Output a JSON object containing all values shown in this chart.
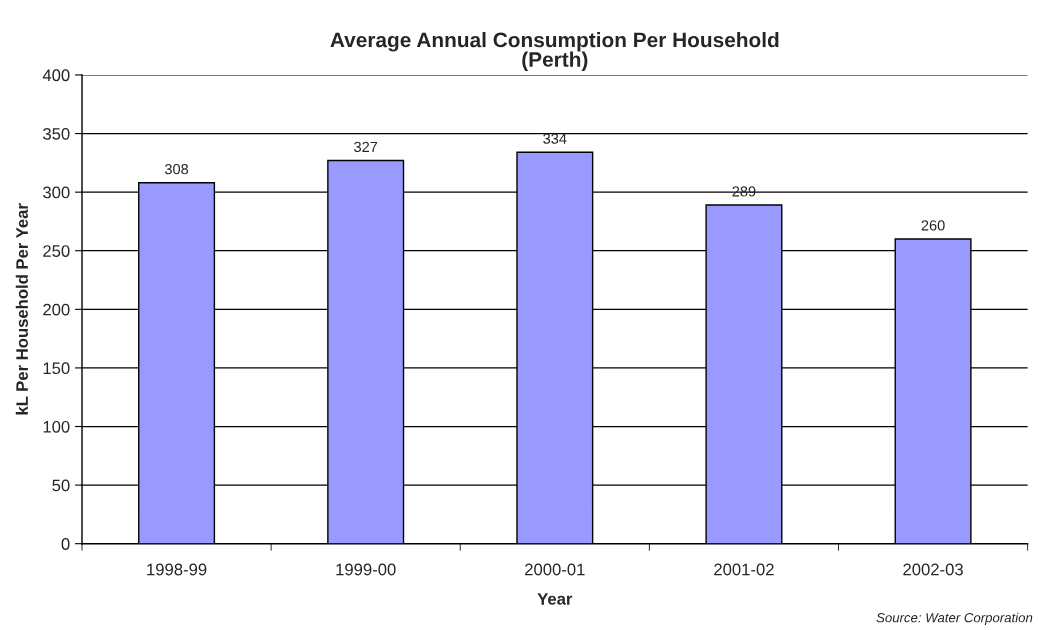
{
  "chart_data": {
    "type": "bar",
    "title": "Average Annual Consumption Per Household\n(Perth)",
    "xlabel": "Year",
    "ylabel": "kL Per Household Per Year",
    "categories": [
      "1998-99",
      "1999-00",
      "2000-01",
      "2001-02",
      "2002-03"
    ],
    "values": [
      308,
      327,
      334,
      289,
      260
    ],
    "color": "#9999ff",
    "ylim": [
      0,
      400
    ],
    "yticks": [
      0,
      50,
      100,
      150,
      200,
      250,
      300,
      350,
      400
    ],
    "grid": "y",
    "data_labels": true,
    "annotations": [
      "Source: Water Corporation"
    ]
  }
}
